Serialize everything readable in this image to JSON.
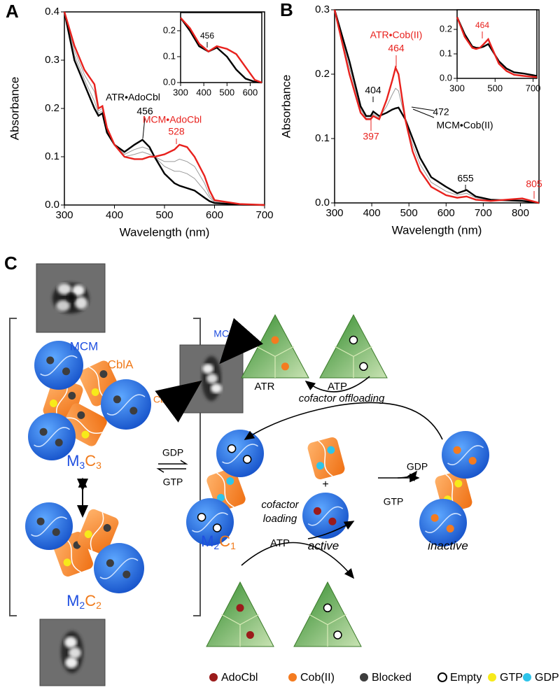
{
  "chart_data": [
    {
      "type": "line",
      "panel": "A",
      "ylabel": "Absorbance",
      "xlabel": "Wavelength (nm)",
      "x": [
        300,
        320,
        340,
        360,
        368,
        376,
        385,
        400,
        420,
        440,
        456,
        470,
        480,
        500,
        520,
        530,
        545,
        560,
        580,
        590,
        600,
        650,
        700
      ],
      "series": [
        {
          "color": "#9a9a9a",
          "values": [
            0.4,
            0.31,
            0.26,
            0.215,
            0.19,
            0.195,
            0.155,
            0.125,
            0.105,
            0.115,
            0.12,
            0.115,
            0.1,
            0.08,
            0.07,
            0.07,
            0.065,
            0.055,
            0.03,
            0.015,
            0.006,
            0.001,
            0
          ]
        },
        {
          "color": "#9a9a9a",
          "values": [
            0.4,
            0.32,
            0.27,
            0.235,
            0.195,
            0.2,
            0.155,
            0.125,
            0.1,
            0.105,
            0.11,
            0.105,
            0.1,
            0.09,
            0.09,
            0.095,
            0.09,
            0.08,
            0.045,
            0.02,
            0.008,
            0.002,
            0
          ]
        },
        {
          "name": "ATR•AdoCbl",
          "color": "#000000",
          "values": [
            0.4,
            0.3,
            0.25,
            0.2,
            0.185,
            0.19,
            0.15,
            0.125,
            0.11,
            0.125,
            0.135,
            0.12,
            0.1,
            0.065,
            0.045,
            0.04,
            0.035,
            0.03,
            0.015,
            0.008,
            0.004,
            0.001,
            0
          ]
        },
        {
          "name": "MCM•AdoCbl",
          "color": "#e8211d",
          "values": [
            0.4,
            0.33,
            0.28,
            0.25,
            0.2,
            0.205,
            0.16,
            0.125,
            0.1,
            0.095,
            0.095,
            0.1,
            0.1,
            0.105,
            0.115,
            0.125,
            0.12,
            0.1,
            0.06,
            0.03,
            0.01,
            0.002,
            0
          ]
        }
      ],
      "xlim": [
        300,
        700
      ],
      "xticks": [
        300,
        400,
        500,
        600,
        700
      ],
      "ylim": [
        0,
        0.4
      ],
      "yticks": [
        {
          "value": 0,
          "label": "0.0"
        },
        {
          "value": 0.1,
          "label": "0.1"
        },
        {
          "value": 0.2,
          "label": "0.2"
        },
        {
          "value": 0.3,
          "label": "0.3"
        },
        {
          "value": 0.4,
          "label": "0.4"
        }
      ],
      "annotations": [
        {
          "text": "456",
          "color": "#000000"
        },
        {
          "text": "528",
          "color": "#e8211d"
        }
      ]
    },
    {
      "type": "line",
      "x": [
        300,
        340,
        380,
        420,
        456,
        500,
        540,
        580,
        620,
        650
      ],
      "series": [
        {
          "color": "#000000",
          "values": [
            0.25,
            0.2,
            0.14,
            0.12,
            0.135,
            0.1,
            0.05,
            0.015,
            0.003,
            0
          ]
        },
        {
          "color": "#e8211d",
          "values": [
            0.25,
            0.21,
            0.15,
            0.12,
            0.14,
            0.13,
            0.11,
            0.06,
            0.01,
            0
          ]
        }
      ],
      "xlim": [
        300,
        650
      ],
      "xticks": [
        300,
        400,
        500,
        600
      ],
      "ylim": [
        0,
        0.27
      ],
      "yticks": [
        {
          "value": 0,
          "label": "0.0"
        },
        {
          "value": 0.1,
          "label": "0.1"
        },
        {
          "value": 0.2,
          "label": "0.2"
        }
      ],
      "annotations": [
        {
          "text": "456",
          "color": "#000000"
        }
      ]
    },
    {
      "type": "line",
      "panel": "B",
      "ylabel": "Absorbance",
      "xlabel": "Wavelength (nm)",
      "x": [
        300,
        340,
        370,
        385,
        397,
        404,
        420,
        440,
        455,
        464,
        472,
        490,
        510,
        530,
        560,
        600,
        630,
        655,
        680,
        720,
        805,
        850
      ],
      "series": [
        {
          "color": "#9a9a9a",
          "values": [
            0.3,
            0.21,
            0.145,
            0.132,
            0.132,
            0.138,
            0.132,
            0.15,
            0.168,
            0.178,
            0.174,
            0.13,
            0.09,
            0.06,
            0.032,
            0.018,
            0.012,
            0.015,
            0.008,
            0.004,
            0.005,
            0
          ]
        },
        {
          "name": "MCM•Cob(II)",
          "color": "#000000",
          "values": [
            0.3,
            0.22,
            0.15,
            0.135,
            0.135,
            0.142,
            0.135,
            0.14,
            0.145,
            0.147,
            0.148,
            0.13,
            0.1,
            0.07,
            0.04,
            0.025,
            0.015,
            0.02,
            0.01,
            0.005,
            0.003,
            0
          ]
        },
        {
          "name": "ATR•Cob(II)",
          "color": "#e8211d",
          "values": [
            0.3,
            0.2,
            0.14,
            0.13,
            0.13,
            0.135,
            0.13,
            0.16,
            0.19,
            0.21,
            0.2,
            0.13,
            0.08,
            0.05,
            0.025,
            0.012,
            0.008,
            0.01,
            0.005,
            0.003,
            0.007,
            0
          ]
        }
      ],
      "xlim": [
        300,
        850
      ],
      "xticks": [
        300,
        400,
        500,
        600,
        700,
        800
      ],
      "ylim": [
        0,
        0.3
      ],
      "yticks": [
        {
          "value": 0,
          "label": "0.0"
        },
        {
          "value": 0.1,
          "label": "0.1"
        },
        {
          "value": 0.2,
          "label": "0.2"
        },
        {
          "value": 0.3,
          "label": "0.3"
        }
      ],
      "annotations": [
        {
          "text": "464",
          "color": "#e8211d"
        },
        {
          "text": "404",
          "color": "#000000"
        },
        {
          "text": "472",
          "color": "#000000"
        },
        {
          "text": "397",
          "color": "#e8211d"
        },
        {
          "text": "655",
          "color": "#000000"
        },
        {
          "text": "805",
          "color": "#e8211d"
        }
      ]
    },
    {
      "type": "line",
      "x": [
        300,
        340,
        380,
        400,
        420,
        440,
        464,
        480,
        520,
        560,
        600,
        650,
        720
      ],
      "series": [
        {
          "color": "#000000",
          "values": [
            0.25,
            0.18,
            0.13,
            0.125,
            0.125,
            0.13,
            0.14,
            0.12,
            0.07,
            0.04,
            0.025,
            0.02,
            0.01
          ]
        },
        {
          "color": "#e8211d",
          "values": [
            0.25,
            0.17,
            0.125,
            0.12,
            0.125,
            0.14,
            0.16,
            0.13,
            0.06,
            0.03,
            0.015,
            0.01,
            0.005
          ]
        }
      ],
      "xlim": [
        300,
        720
      ],
      "xticks": [
        300,
        500,
        700
      ],
      "ylim": [
        0,
        0.28
      ],
      "yticks": [
        {
          "value": 0,
          "label": "0.0"
        },
        {
          "value": 0.1,
          "label": "0.1"
        },
        {
          "value": 0.2,
          "label": "0.2"
        }
      ],
      "annotations": [
        {
          "text": "464",
          "color": "#e8211d"
        }
      ]
    }
  ],
  "diagram": {
    "panel": "C",
    "mcm_label": "MCM",
    "cbla_label": "CblA",
    "m3c3": [
      "M",
      "3",
      "C",
      "3"
    ],
    "m2c2": [
      "M",
      "2",
      "C",
      "2"
    ],
    "m2c1": [
      "M",
      "2",
      "C",
      "1"
    ],
    "gdp_left": "GDP",
    "gtp_left": "GTP",
    "em_mcm": "MCM",
    "em_cbla": "CblA",
    "atr": "ATR",
    "atp_top": "ATP",
    "offloading": "cofactor offloading",
    "loading": [
      "cofactor",
      "loading"
    ],
    "atp_bottom": "ATP",
    "plus": "+",
    "active": "active",
    "inactive": "inactive",
    "gdp_right": "GDP",
    "gtp_right": "GTP",
    "legend": [
      {
        "label": "AdoCbl",
        "color": "#9b1b1b"
      },
      {
        "label": "Cob(II)",
        "color": "#f47b20"
      },
      {
        "label": "Blocked",
        "color": "#3d3d3d"
      },
      {
        "label": "Empty",
        "color": "#ffffff"
      },
      {
        "label": "GTP",
        "color": "#f7ea1a"
      },
      {
        "label": "GDP",
        "color": "#2ec4ea"
      }
    ]
  }
}
